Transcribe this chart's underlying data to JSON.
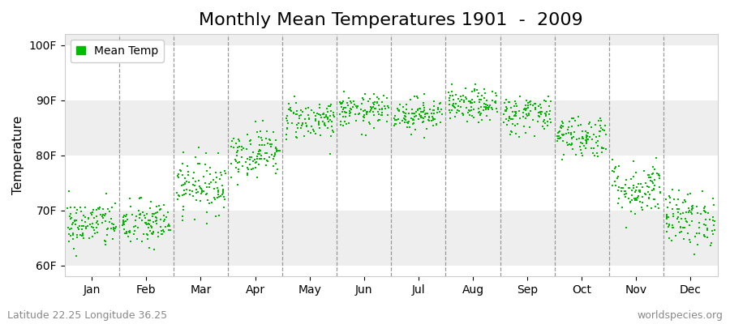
{
  "title": "Monthly Mean Temperatures 1901  -  2009",
  "ylabel": "Temperature",
  "xlabel_labels": [
    "Jan",
    "Feb",
    "Mar",
    "Apr",
    "May",
    "Jun",
    "Jul",
    "Aug",
    "Sep",
    "Oct",
    "Nov",
    "Dec"
  ],
  "subtitle": "Latitude 22.25 Longitude 36.25",
  "watermark": "worldspecies.org",
  "legend_label": "Mean Temp",
  "marker_color": "#00BB00",
  "figure_bg_color": "#ffffff",
  "plot_bg_color": "#ffffff",
  "band_color": "#eeeeee",
  "dashed_line_color": "#999999",
  "ytick_labels": [
    "60F",
    "70F",
    "80F",
    "90F",
    "100F"
  ],
  "ytick_values": [
    60,
    70,
    80,
    90,
    100
  ],
  "ylim": [
    58,
    102
  ],
  "monthly_means": [
    67.5,
    67.5,
    74.5,
    80.5,
    86.5,
    88.0,
    87.5,
    89.0,
    87.5,
    83.5,
    74.0,
    68.5
  ],
  "monthly_stds": [
    2.2,
    2.2,
    2.5,
    2.2,
    1.8,
    1.5,
    1.5,
    1.5,
    1.8,
    2.0,
    2.5,
    2.5
  ],
  "n_years": 109,
  "title_fontsize": 16,
  "axis_label_fontsize": 11,
  "tick_fontsize": 10,
  "legend_fontsize": 10,
  "subtitle_fontsize": 9,
  "watermark_fontsize": 9
}
